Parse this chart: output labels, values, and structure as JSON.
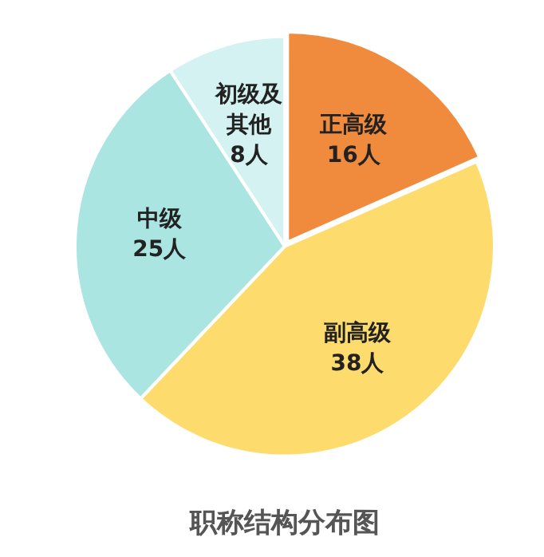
{
  "chart_data": {
    "type": "pie",
    "title": "职称结构分布图",
    "categories": [
      "正高级",
      "副高级",
      "中级",
      "初级及其他"
    ],
    "values": [
      16,
      38,
      25,
      8
    ],
    "colors": [
      "#f08a3c",
      "#fddb6d",
      "#abe5e2",
      "#d5f2f2"
    ],
    "value_labels": [
      "16人",
      "38人",
      "25人",
      "8人"
    ],
    "legend": false
  }
}
